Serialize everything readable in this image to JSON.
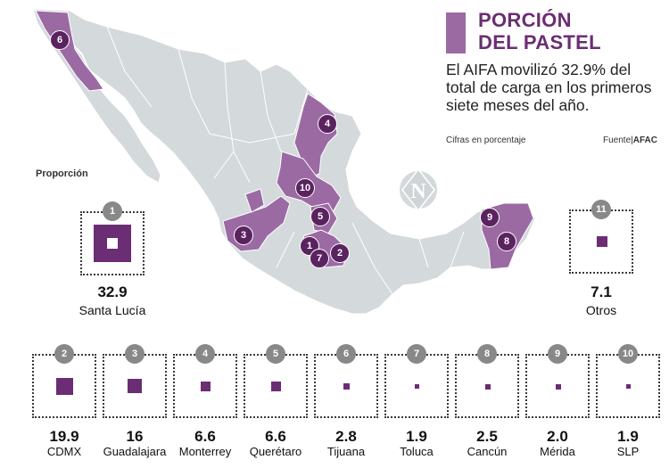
{
  "header": {
    "title_line1": "PORCIÓN",
    "title_line2": "DEL PASTEL",
    "subtitle": "El AIFA movilizó 32.9% del total de carga en los primeros siete meses del año.",
    "note": "Cifras en porcentaje",
    "source_label": "Fuente|",
    "source_value": "AFAC"
  },
  "legend": {
    "proportion_label": "Proporción"
  },
  "colors": {
    "accent": "#6b2d73",
    "region": "#9b6aa3",
    "land": "#d4d9dc",
    "badge": "#888888"
  },
  "compass": {
    "letter": "N"
  },
  "airports": [
    {
      "rank": "1",
      "value": "32.9",
      "name": "Santa Lucía"
    },
    {
      "rank": "2",
      "value": "19.9",
      "name": "CDMX"
    },
    {
      "rank": "3",
      "value": "16",
      "name": "Guadalajara"
    },
    {
      "rank": "4",
      "value": "6.6",
      "name": "Monterrey"
    },
    {
      "rank": "5",
      "value": "6.6",
      "name": "Querétaro"
    },
    {
      "rank": "6",
      "value": "2.8",
      "name": "Tijuana"
    },
    {
      "rank": "7",
      "value": "1.9",
      "name": "Toluca"
    },
    {
      "rank": "8",
      "value": "2.5",
      "name": "Cancún"
    },
    {
      "rank": "9",
      "value": "2.0",
      "name": "Mérida"
    },
    {
      "rank": "10",
      "value": "1.9",
      "name": "SLP"
    },
    {
      "rank": "11",
      "value": "7.1",
      "name": "Otros"
    }
  ]
}
